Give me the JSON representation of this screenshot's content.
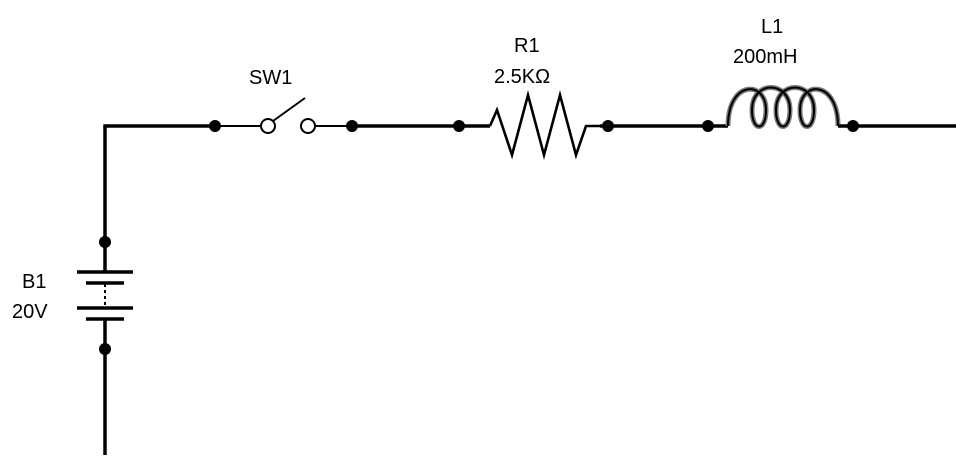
{
  "components": {
    "switch": {
      "ref": "SW1"
    },
    "resistor": {
      "ref": "R1",
      "value": "2.5KΩ"
    },
    "inductor": {
      "ref": "L1",
      "value": "200mH"
    },
    "battery": {
      "ref": "B1",
      "value": "20V"
    }
  }
}
